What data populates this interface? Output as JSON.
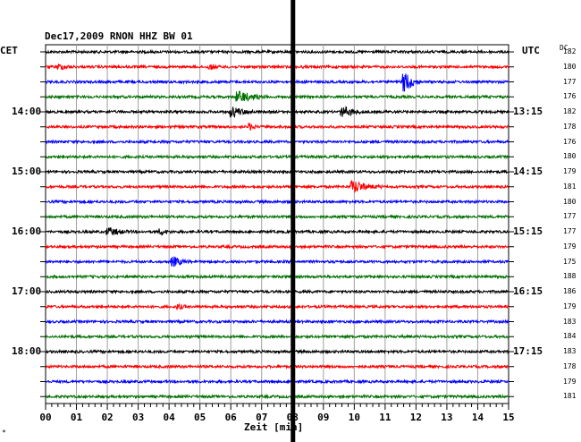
{
  "header": {
    "title": "Dec17,2009  RNON HHZ BW 01",
    "left_timezone": "CET",
    "right_timezone": "UTC",
    "dc_label": "DC"
  },
  "footer": {
    "xlabel": "Zeit [min]",
    "corner_mark": "*"
  },
  "colors": {
    "trace_cycle": [
      "#000000",
      "#ff0000",
      "#0000ff",
      "#007000"
    ],
    "grid": "#a0a0a0",
    "marker": "#000000"
  },
  "chart_data": {
    "type": "line",
    "title": "Dec17,2009  RNON HHZ BW 01",
    "xlabel": "Zeit [min]",
    "ylabel": "",
    "xlim": [
      0,
      15
    ],
    "x_ticks": [
      "00",
      "01",
      "02",
      "03",
      "04",
      "05",
      "06",
      "07",
      "08",
      "09",
      "10",
      "11",
      "12",
      "13",
      "14",
      "15"
    ],
    "grid": true,
    "rows_per_hour": 4,
    "row_minutes": 15,
    "left_hour_labels": [
      {
        "row": 4,
        "text": "14:00"
      },
      {
        "row": 8,
        "text": "15:00"
      },
      {
        "row": 12,
        "text": "16:00"
      },
      {
        "row": 16,
        "text": "17:00"
      },
      {
        "row": 20,
        "text": "18:00"
      }
    ],
    "right_hour_labels": [
      {
        "row": 4,
        "text": "13:15"
      },
      {
        "row": 8,
        "text": "14:15"
      },
      {
        "row": 12,
        "text": "15:15"
      },
      {
        "row": 16,
        "text": "16:15"
      },
      {
        "row": 20,
        "text": "17:15"
      }
    ],
    "dc_offsets": [
      182,
      180,
      177,
      176,
      182,
      178,
      176,
      180,
      179,
      181,
      180,
      177,
      177,
      179,
      175,
      188,
      186,
      179,
      183,
      184,
      183,
      178,
      179,
      181
    ],
    "vertical_marker_minute": 8.0,
    "events": [
      {
        "row": 1,
        "minute": 0.4,
        "amp": 0.6,
        "dur": 0.5
      },
      {
        "row": 1,
        "minute": 5.3,
        "amp": 0.5,
        "dur": 0.4
      },
      {
        "row": 2,
        "minute": 11.6,
        "amp": 2.2,
        "dur": 0.6
      },
      {
        "row": 3,
        "minute": 6.2,
        "amp": 1.2,
        "dur": 1.0
      },
      {
        "row": 4,
        "minute": 6.0,
        "amp": 1.1,
        "dur": 0.8
      },
      {
        "row": 4,
        "minute": 9.6,
        "amp": 1.0,
        "dur": 0.8
      },
      {
        "row": 5,
        "minute": 6.6,
        "amp": 0.7,
        "dur": 0.3
      },
      {
        "row": 9,
        "minute": 9.9,
        "amp": 1.3,
        "dur": 1.0
      },
      {
        "row": 12,
        "minute": 2.0,
        "amp": 0.8,
        "dur": 0.8
      },
      {
        "row": 12,
        "minute": 3.7,
        "amp": 0.6,
        "dur": 0.4
      },
      {
        "row": 14,
        "minute": 4.1,
        "amp": 1.0,
        "dur": 0.6
      },
      {
        "row": 17,
        "minute": 4.3,
        "amp": 0.5,
        "dur": 0.3
      }
    ]
  }
}
